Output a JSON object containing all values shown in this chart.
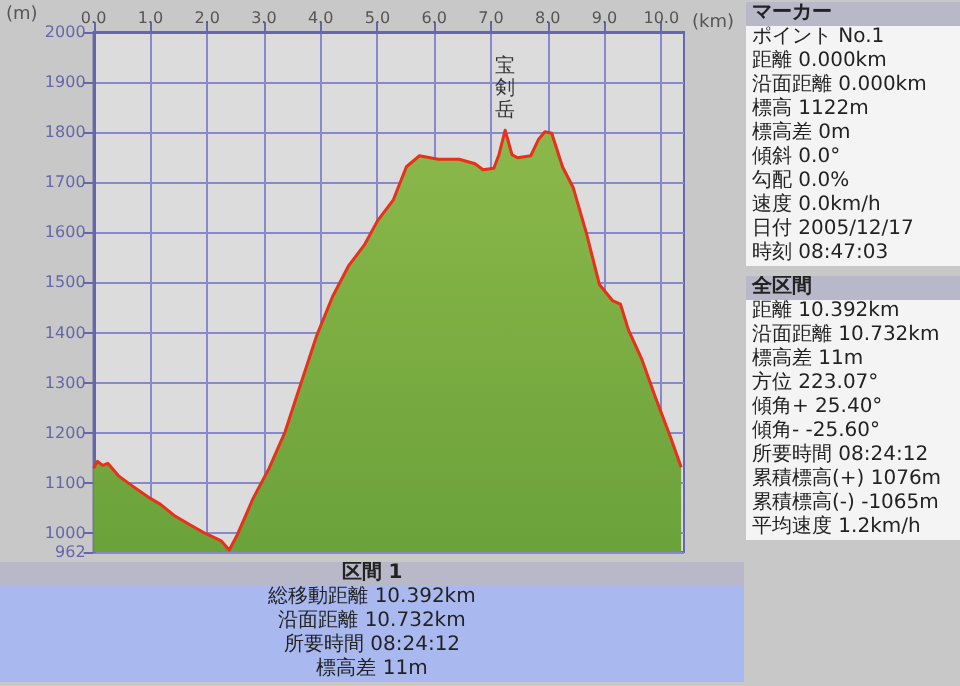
{
  "chart_data": [
    {
      "type": "area",
      "xlabel": "(km)",
      "ylabel": "(m)",
      "x": [
        0,
        0.07,
        0.16,
        0.25,
        0.44,
        0.67,
        1.0,
        1.18,
        1.42,
        1.69,
        1.97,
        2.25,
        2.39,
        2.53,
        2.81,
        3.09,
        3.37,
        3.65,
        3.93,
        4.21,
        4.49,
        4.77,
        5.0,
        5.28,
        5.51,
        5.74,
        6.07,
        6.44,
        6.72,
        6.86,
        7.05,
        7.14,
        7.25,
        7.37,
        7.47,
        7.7,
        7.84,
        7.95,
        8.07,
        8.26,
        8.45,
        8.68,
        8.91,
        9.14,
        9.28,
        9.42,
        9.66,
        9.89,
        10.17,
        10.35
      ],
      "series": [
        {
          "color": "#6aa23a",
          "values": [
            1129,
            1143,
            1135,
            1139,
            1114,
            1095,
            1069,
            1057,
            1035,
            1017,
            999,
            984,
            966,
            996,
            1069,
            1129,
            1201,
            1298,
            1394,
            1472,
            1533,
            1575,
            1623,
            1665,
            1731,
            1753,
            1746,
            1746,
            1737,
            1725,
            1728,
            1755,
            1804,
            1755,
            1749,
            1753,
            1786,
            1801,
            1798,
            1731,
            1689,
            1599,
            1496,
            1464,
            1457,
            1406,
            1346,
            1273,
            1189,
            1131
          ]
        }
      ],
      "xlim": [
        0,
        10.4
      ],
      "xticks": [
        {
          "value": 0,
          "label": "0.0"
        },
        {
          "value": 1,
          "label": "1.0"
        },
        {
          "value": 2,
          "label": "2.0"
        },
        {
          "value": 3,
          "label": "3.0"
        },
        {
          "value": 4,
          "label": "4.0"
        },
        {
          "value": 5,
          "label": "5.0"
        },
        {
          "value": 6,
          "label": "6.0"
        },
        {
          "value": 7,
          "label": "7.0"
        },
        {
          "value": 8,
          "label": "8.0"
        },
        {
          "value": 9,
          "label": "9.0"
        },
        {
          "value": 10,
          "label": "10.0"
        }
      ],
      "ylim": [
        962,
        2000
      ],
      "yticks": [
        962,
        1000,
        1100,
        1200,
        1300,
        1400,
        1500,
        1600,
        1700,
        1800,
        1900,
        2000
      ],
      "grid": true,
      "annotations": [
        {
          "text": "宝剣岳",
          "x": 7.25,
          "y": 1804
        }
      ]
    },
    {
      "type": "other",
      "title": "マーカー",
      "annotations": [
        "ポイント No.1",
        "距離 0.000km",
        "沿面距離 0.000km",
        "標高 1122m",
        "標高差 0m",
        "傾斜 0.0°",
        "勾配 0.0%",
        "速度 0.0km/h",
        "日付 2005/12/17",
        "時刻 08:47:03"
      ]
    },
    {
      "type": "other",
      "title": "全区間",
      "annotations": [
        "距離 10.392km",
        "沿面距離 10.732km",
        "標高差 11m",
        "方位 223.07°",
        "傾角+ 25.40°",
        "傾角- -25.60°",
        "所要時間 08:24:12",
        "累積標高(+) 1076m",
        "累積標高(-) -1065m",
        "平均速度 1.2km/h"
      ]
    },
    {
      "type": "other",
      "title": "区間 1",
      "annotations": [
        "総移動距離 10.392km",
        "沿面距離 10.732km",
        "所要時間 08:24:12",
        "標高差 11m"
      ]
    }
  ]
}
